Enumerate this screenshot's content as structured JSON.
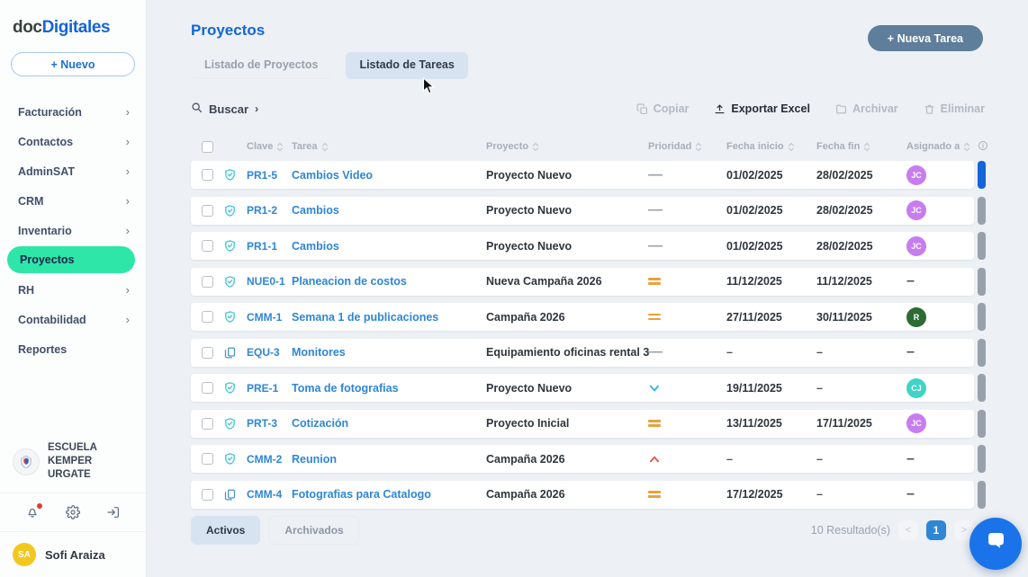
{
  "sidebar": {
    "logo_prefix": "doc",
    "logo_suffix": "Digitales",
    "new_button_label": "+ Nuevo",
    "nav_items": [
      {
        "label": "Facturación",
        "chevron": true,
        "active": false
      },
      {
        "label": "Contactos",
        "chevron": true,
        "active": false
      },
      {
        "label": "AdminSAT",
        "chevron": true,
        "active": false
      },
      {
        "label": "CRM",
        "chevron": true,
        "active": false
      },
      {
        "label": "Inventario",
        "chevron": true,
        "active": false
      },
      {
        "label": "Proyectos",
        "chevron": false,
        "active": true
      },
      {
        "label": "RH",
        "chevron": true,
        "active": false
      },
      {
        "label": "Contabilidad",
        "chevron": true,
        "active": false
      },
      {
        "label": "Reportes",
        "chevron": false,
        "active": false
      }
    ],
    "organization_name": "ESCUELA KEMPER URGATE",
    "user_initials": "SA",
    "user_name": "Sofi Araiza"
  },
  "header": {
    "page_title": "Proyectos",
    "tabs": [
      {
        "label": "Listado de Proyectos",
        "active": false
      },
      {
        "label": "Listado de Tareas",
        "active": true
      }
    ],
    "new_task_label": "+ Nueva Tarea"
  },
  "toolbar": {
    "search_label": "Buscar",
    "actions": [
      {
        "label": "Copiar",
        "icon": "copy-icon",
        "enabled": false
      },
      {
        "label": "Exportar Excel",
        "icon": "export-icon",
        "enabled": true
      },
      {
        "label": "Archivar",
        "icon": "archive-icon",
        "enabled": false
      },
      {
        "label": "Eliminar",
        "icon": "trash-icon",
        "enabled": false
      }
    ]
  },
  "table": {
    "columns": [
      "Clave",
      "Tarea",
      "Proyecto",
      "Prioridad",
      "Fecha inicio",
      "Fecha fin",
      "Asignado a"
    ],
    "rows": [
      {
        "key": "PR1-5",
        "type_icon": "shield",
        "task": "Cambios Video",
        "project": "Proyecto Nuevo",
        "priority": "none",
        "start": "01/02/2025",
        "end": "28/02/2025",
        "assignee": "JC",
        "assignee_color": "#c77cf0",
        "handle": "blue"
      },
      {
        "key": "PR1-2",
        "type_icon": "shield",
        "task": "Cambios",
        "project": "Proyecto Nuevo",
        "priority": "none",
        "start": "01/02/2025",
        "end": "28/02/2025",
        "assignee": "JC",
        "assignee_color": "#c77cf0",
        "handle": "gray"
      },
      {
        "key": "PR1-1",
        "type_icon": "shield",
        "task": "Cambios",
        "project": "Proyecto Nuevo",
        "priority": "none",
        "start": "01/02/2025",
        "end": "28/02/2025",
        "assignee": "JC",
        "assignee_color": "#c77cf0",
        "handle": "gray"
      },
      {
        "key": "NUE0-1",
        "type_icon": "shield",
        "task": "Planeacion de costos",
        "project": "Nueva Campaña 2026",
        "priority": "medium",
        "start": "11/12/2025",
        "end": "11/12/2025",
        "assignee": null,
        "assignee_color": null,
        "handle": "gray"
      },
      {
        "key": "CMM-1",
        "type_icon": "shield",
        "task": "Semana 1 de publicaciones",
        "project": "Campaña 2026",
        "priority": "medium",
        "start": "27/11/2025",
        "end": "30/11/2025",
        "assignee": "R",
        "assignee_color": "#2e6b34",
        "handle": "gray"
      },
      {
        "key": "EQU-3",
        "type_icon": "pages",
        "task": "Monitores",
        "project": "Equipamiento oficinas rental 3",
        "priority": "none",
        "start": null,
        "end": null,
        "assignee": null,
        "assignee_color": null,
        "handle": "gray"
      },
      {
        "key": "PRE-1",
        "type_icon": "shield",
        "task": "Toma de fotografias",
        "project": "Proyecto Nuevo",
        "priority": "low",
        "start": "19/11/2025",
        "end": null,
        "assignee": "CJ",
        "assignee_color": "#3fd4c5",
        "handle": "gray"
      },
      {
        "key": "PRT-3",
        "type_icon": "shield",
        "task": "Cotización",
        "project": "Proyecto Inicial",
        "priority": "medium",
        "start": "13/11/2025",
        "end": "17/11/2025",
        "assignee": "JC",
        "assignee_color": "#c77cf0",
        "handle": "gray"
      },
      {
        "key": "CMM-2",
        "type_icon": "shield",
        "task": "Reunion",
        "project": "Campaña 2026",
        "priority": "high",
        "start": null,
        "end": null,
        "assignee": null,
        "assignee_color": null,
        "handle": "gray"
      },
      {
        "key": "CMM-4",
        "type_icon": "pages",
        "task": "Fotografias para Catalogo",
        "project": "Campaña 2026",
        "priority": "medium",
        "start": "17/12/2025",
        "end": null,
        "assignee": null,
        "assignee_color": null,
        "handle": "gray"
      }
    ]
  },
  "footer": {
    "filters": [
      {
        "label": "Activos",
        "active": true
      },
      {
        "label": "Archivados",
        "active": false
      }
    ],
    "results_text": "10 Resultado(s)",
    "prev_label": "<",
    "current_page": "1",
    "next_label": ">"
  },
  "colors": {
    "accent_blue": "#1266d8",
    "link_blue": "#2e86d6",
    "active_green": "#2ee6a8",
    "new_task_button": "#5e7e9b",
    "priority_medium": "#e9a23b",
    "priority_low": "#35b5d9",
    "priority_high": "#e0584b",
    "shield_icon": "#3fc3d4",
    "pages_icon": "#4a90d9",
    "chat_button": "#1a73e8",
    "pagination_active": "#2e86d4"
  }
}
